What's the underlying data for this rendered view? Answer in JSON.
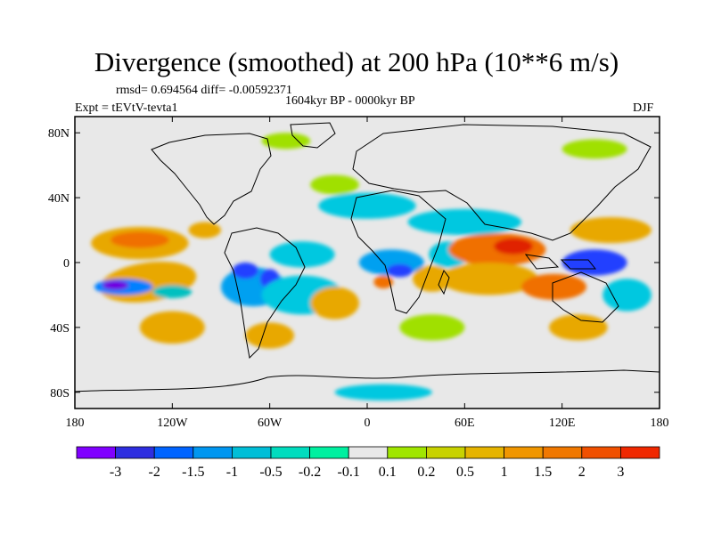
{
  "figure": {
    "title": "Divergence (smoothed) at 200 hPa (10**6 m/s)",
    "stats": "rmsd= 0.694564 diff= -0.00592371",
    "period": "1604kyr BP - 0000kyr BP",
    "experiment": "Expt = tEVtV-tevta1",
    "season": "DJF"
  },
  "map": {
    "projection": "cylindrical equidistant",
    "lon_range": [
      -180,
      180
    ],
    "lat_range": [
      -90,
      90
    ],
    "lat_ticks": [
      {
        "value": 80,
        "label": "80N"
      },
      {
        "value": 40,
        "label": "40N"
      },
      {
        "value": 0,
        "label": "0"
      },
      {
        "value": -40,
        "label": "40S"
      },
      {
        "value": -80,
        "label": "80S"
      }
    ],
    "lon_ticks": [
      {
        "value": -180,
        "label": "180"
      },
      {
        "value": -120,
        "label": "120W"
      },
      {
        "value": -60,
        "label": "60W"
      },
      {
        "value": 0,
        "label": "0"
      },
      {
        "value": 60,
        "label": "60E"
      },
      {
        "value": 120,
        "label": "120E"
      },
      {
        "value": 180,
        "label": "180"
      }
    ],
    "background_color": "#e8e8e8",
    "coastline_color": "#000000",
    "blobs": [
      {
        "lon": -135,
        "lat": -12,
        "rx": 30,
        "ry": 12,
        "color": "#e8a800",
        "rot": -8
      },
      {
        "lon": -150,
        "lat": -15,
        "rx": 18,
        "ry": 5,
        "color": "#0080ff"
      },
      {
        "lon": -155,
        "lat": -14,
        "rx": 8,
        "ry": 3,
        "color": "#7000e0"
      },
      {
        "lon": -120,
        "lat": -18,
        "rx": 12,
        "ry": 4,
        "color": "#00c0c0"
      },
      {
        "lon": -140,
        "lat": 12,
        "rx": 30,
        "ry": 10,
        "color": "#e8a800"
      },
      {
        "lon": -140,
        "lat": 14,
        "rx": 18,
        "ry": 5,
        "color": "#f07000"
      },
      {
        "lon": -100,
        "lat": 20,
        "rx": 10,
        "ry": 5,
        "color": "#e8a800"
      },
      {
        "lon": -70,
        "lat": -15,
        "rx": 20,
        "ry": 12,
        "color": "#00a0f0"
      },
      {
        "lon": -75,
        "lat": -5,
        "rx": 8,
        "ry": 5,
        "color": "#2040ff"
      },
      {
        "lon": -60,
        "lat": -10,
        "rx": 6,
        "ry": 6,
        "color": "#2040ff"
      },
      {
        "lon": -40,
        "lat": -20,
        "rx": 25,
        "ry": 12,
        "color": "#00c8e0"
      },
      {
        "lon": -40,
        "lat": 5,
        "rx": 20,
        "ry": 8,
        "color": "#00c8e0"
      },
      {
        "lon": -20,
        "lat": -25,
        "rx": 15,
        "ry": 10,
        "color": "#e8a800"
      },
      {
        "lon": 15,
        "lat": 0,
        "rx": 20,
        "ry": 8,
        "color": "#00a0f0"
      },
      {
        "lon": 20,
        "lat": -5,
        "rx": 8,
        "ry": 4,
        "color": "#2040ff"
      },
      {
        "lon": 10,
        "lat": -12,
        "rx": 6,
        "ry": 4,
        "color": "#f07000"
      },
      {
        "lon": 40,
        "lat": -10,
        "rx": 12,
        "ry": 8,
        "color": "#e8a800"
      },
      {
        "lon": 50,
        "lat": 5,
        "rx": 12,
        "ry": 8,
        "color": "#00c8e0"
      },
      {
        "lon": 80,
        "lat": 8,
        "rx": 30,
        "ry": 10,
        "color": "#f07000"
      },
      {
        "lon": 90,
        "lat": 10,
        "rx": 12,
        "ry": 5,
        "color": "#e02000"
      },
      {
        "lon": 75,
        "lat": -10,
        "rx": 30,
        "ry": 10,
        "color": "#e8a800"
      },
      {
        "lon": 115,
        "lat": -15,
        "rx": 20,
        "ry": 8,
        "color": "#f07000"
      },
      {
        "lon": 140,
        "lat": 0,
        "rx": 20,
        "ry": 8,
        "color": "#2040ff"
      },
      {
        "lon": 150,
        "lat": 20,
        "rx": 25,
        "ry": 8,
        "color": "#e8a800"
      },
      {
        "lon": 160,
        "lat": -20,
        "rx": 15,
        "ry": 10,
        "color": "#00c8e0"
      },
      {
        "lon": 60,
        "lat": 25,
        "rx": 35,
        "ry": 8,
        "color": "#00c8e0"
      },
      {
        "lon": 0,
        "lat": 35,
        "rx": 30,
        "ry": 8,
        "color": "#00c8e0"
      },
      {
        "lon": -20,
        "lat": 48,
        "rx": 15,
        "ry": 6,
        "color": "#a0e000"
      },
      {
        "lon": -120,
        "lat": -40,
        "rx": 20,
        "ry": 10,
        "color": "#e8a800"
      },
      {
        "lon": -60,
        "lat": -45,
        "rx": 15,
        "ry": 8,
        "color": "#e8a800"
      },
      {
        "lon": 40,
        "lat": -40,
        "rx": 20,
        "ry": 8,
        "color": "#a0e000"
      },
      {
        "lon": 130,
        "lat": -40,
        "rx": 18,
        "ry": 8,
        "color": "#e8a800"
      },
      {
        "lon": -50,
        "lat": 75,
        "rx": 15,
        "ry": 5,
        "color": "#a0e000"
      },
      {
        "lon": 140,
        "lat": 70,
        "rx": 20,
        "ry": 6,
        "color": "#a0e000"
      },
      {
        "lon": 10,
        "lat": -80,
        "rx": 30,
        "ry": 5,
        "color": "#00c8e0"
      }
    ]
  },
  "colorbar": {
    "colors": [
      "#8000ff",
      "#2e2ee0",
      "#0064ff",
      "#0096f0",
      "#00bed7",
      "#00dcbe",
      "#00f0a0",
      "#e8e8e8",
      "#a0e600",
      "#c8d200",
      "#e6b400",
      "#f09600",
      "#f07800",
      "#f05000",
      "#f02800"
    ],
    "labels": [
      "-3",
      "-2",
      "-1.5",
      "-1",
      "-0.5",
      "-0.2",
      "-0.1",
      "0.1",
      "0.2",
      "0.5",
      "1",
      "1.5",
      "2",
      "3"
    ]
  }
}
